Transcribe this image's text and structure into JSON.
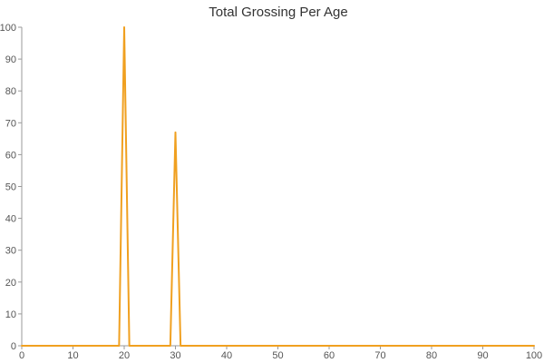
{
  "chart_data": {
    "type": "line",
    "title": "Total Grossing Per Age",
    "xlabel": "",
    "ylabel": "",
    "xlim": [
      0,
      100
    ],
    "ylim": [
      0,
      100
    ],
    "x_ticks": [
      0,
      10,
      20,
      30,
      40,
      50,
      60,
      70,
      80,
      90,
      100
    ],
    "y_ticks": [
      0,
      10,
      20,
      30,
      40,
      50,
      60,
      70,
      80,
      90,
      100
    ],
    "grid": false,
    "legend": "none",
    "series": [
      {
        "color": "#f0a020",
        "x": [
          0,
          19,
          20,
          21,
          29,
          30,
          31,
          100
        ],
        "y": [
          0,
          0,
          100,
          0,
          0,
          67,
          0,
          0
        ]
      }
    ]
  }
}
